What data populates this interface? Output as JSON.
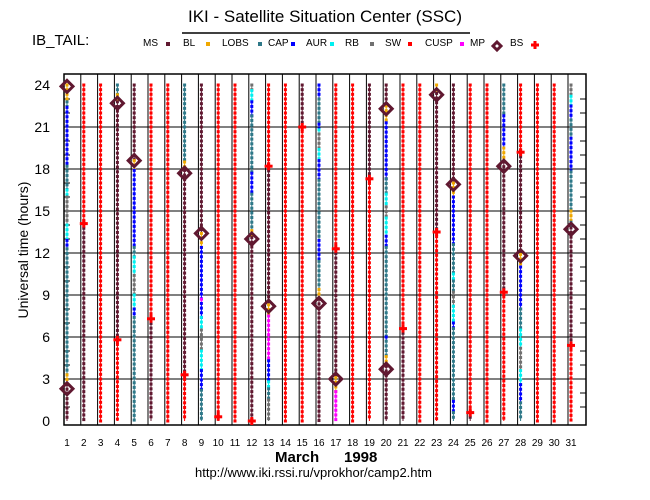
{
  "title": "IKI - Satellite Situation Center (SSC)",
  "subtitle": "IB_TAIL:",
  "footer_url": "http://www.iki.rssi.ru/vprokhor/camp2.htm",
  "chart_data": {
    "type": "scatter",
    "title": "IKI - Satellite Situation Center (SSC)",
    "ylabel": "Universal time (hours)",
    "xlabel_month": "March",
    "xlabel_year": "1998",
    "ylim": [
      0,
      24
    ],
    "yticks": [
      0,
      3,
      6,
      9,
      12,
      15,
      18,
      21,
      24
    ],
    "xticks": [
      1,
      2,
      3,
      4,
      5,
      6,
      7,
      8,
      9,
      10,
      11,
      12,
      13,
      14,
      15,
      16,
      17,
      18,
      19,
      20,
      21,
      22,
      23,
      24,
      25,
      26,
      27,
      28,
      29,
      30,
      31
    ],
    "grid": true,
    "legend_placement": "top",
    "legend": [
      {
        "key": "MS",
        "label": "MS",
        "marker": "dot",
        "color": "#601830"
      },
      {
        "key": "BL",
        "label": "BL",
        "marker": "dot",
        "color": "#f0a800"
      },
      {
        "key": "LOBS",
        "label": "LOBS",
        "marker": "dot",
        "color": "#2e7888"
      },
      {
        "key": "CAP",
        "label": "CAP",
        "marker": "dot",
        "color": "#0000ff"
      },
      {
        "key": "AUR",
        "label": "AUR",
        "marker": "dot",
        "color": "#00f0f0"
      },
      {
        "key": "RB",
        "label": "RB",
        "marker": "dot",
        "color": "#707070"
      },
      {
        "key": "SW",
        "label": "SW",
        "marker": "dot",
        "color": "#ff0000"
      },
      {
        "key": "CUSP",
        "label": "CUSP",
        "marker": "dot",
        "color": "#ff00ff"
      },
      {
        "key": "MP",
        "label": "MP",
        "marker": "diamond",
        "color": "#601830"
      },
      {
        "key": "BS",
        "label": "BS",
        "marker": "cross",
        "color": "#ff0000"
      }
    ],
    "days": [
      {
        "day": 1,
        "segments": [
          [
            24,
            22.8,
            "BL"
          ],
          [
            22.8,
            22.4,
            "LOBS"
          ],
          [
            22.4,
            18.2,
            "CAP"
          ],
          [
            18.2,
            16.5,
            "LOBS"
          ],
          [
            16.5,
            16,
            "AUR"
          ],
          [
            16,
            14,
            "RB"
          ],
          [
            14,
            12.9,
            "AUR"
          ],
          [
            12.9,
            12.3,
            "CAP"
          ],
          [
            12.3,
            3.3,
            "LOBS"
          ],
          [
            3.3,
            2.6,
            "BL"
          ],
          [
            2.6,
            0,
            "MS"
          ]
        ],
        "MP": [
          23.9,
          2.3
        ],
        "BS": []
      },
      {
        "day": 2,
        "segments": [
          [
            24,
            14.1,
            "SW"
          ],
          [
            14.1,
            0,
            "MS"
          ]
        ],
        "MP": [],
        "BS": [
          14.1
        ]
      },
      {
        "day": 3,
        "segments": [
          [
            24,
            0,
            "SW"
          ]
        ],
        "MP": [],
        "BS": []
      },
      {
        "day": 4,
        "segments": [
          [
            24,
            23.3,
            "LOBS"
          ],
          [
            23.3,
            22.8,
            "BL"
          ],
          [
            22.8,
            5.8,
            "MS"
          ],
          [
            5.8,
            0,
            "SW"
          ]
        ],
        "MP": [
          22.7
        ],
        "BS": [
          5.8
        ]
      },
      {
        "day": 5,
        "segments": [
          [
            24,
            18.6,
            "MS"
          ],
          [
            18.6,
            17.9,
            "BL"
          ],
          [
            17.9,
            12.4,
            "CAP"
          ],
          [
            12.4,
            11.7,
            "LOBS"
          ],
          [
            11.7,
            10.4,
            "AUR"
          ],
          [
            10.4,
            9,
            "RB"
          ],
          [
            9,
            8,
            "AUR"
          ],
          [
            8,
            7.4,
            "CAP"
          ],
          [
            7.4,
            0,
            "LOBS"
          ]
        ],
        "MP": [
          18.6
        ],
        "BS": []
      },
      {
        "day": 6,
        "segments": [
          [
            24,
            7.3,
            "SW"
          ],
          [
            7.3,
            0,
            "MS"
          ]
        ],
        "MP": [],
        "BS": [
          7.3
        ]
      },
      {
        "day": 7,
        "segments": [
          [
            24,
            0,
            "SW"
          ]
        ],
        "MP": [],
        "BS": []
      },
      {
        "day": 8,
        "segments": [
          [
            24,
            18.5,
            "LOBS"
          ],
          [
            18.5,
            17.9,
            "BL"
          ],
          [
            17.9,
            3.3,
            "MS"
          ],
          [
            3.3,
            0,
            "SW"
          ]
        ],
        "MP": [
          17.7
        ],
        "BS": [
          3.3
        ]
      },
      {
        "day": 9,
        "segments": [
          [
            24,
            13.4,
            "MS"
          ],
          [
            13.4,
            12.4,
            "BL"
          ],
          [
            12.4,
            8.7,
            "CAP"
          ],
          [
            8.7,
            8.4,
            "CUSP"
          ],
          [
            8.4,
            7.4,
            "CAP"
          ],
          [
            7.4,
            6.5,
            "AUR"
          ],
          [
            6.5,
            5,
            "RB"
          ],
          [
            5,
            3.6,
            "AUR"
          ],
          [
            3.6,
            2.2,
            "CAP"
          ],
          [
            2.2,
            0,
            "LOBS"
          ]
        ],
        "MP": [
          13.4
        ],
        "BS": []
      },
      {
        "day": 10,
        "segments": [
          [
            24,
            0.3,
            "SW"
          ],
          [
            0.3,
            0,
            "MS"
          ]
        ],
        "MP": [],
        "BS": [
          0.3
        ]
      },
      {
        "day": 11,
        "segments": [
          [
            24,
            0,
            "SW"
          ]
        ],
        "MP": [],
        "BS": []
      },
      {
        "day": 12,
        "segments": [
          [
            24,
            23.6,
            "RB"
          ],
          [
            23.6,
            22.8,
            "AUR"
          ],
          [
            22.8,
            21.8,
            "CAP"
          ],
          [
            21.8,
            17.7,
            "LOBS"
          ],
          [
            17.7,
            16.2,
            "CAP"
          ],
          [
            16.2,
            13.6,
            "LOBS"
          ],
          [
            13.6,
            13.1,
            "BL"
          ],
          [
            13.1,
            0,
            "MS"
          ]
        ],
        "MP": [
          13.0
        ],
        "BS": [
          0
        ]
      },
      {
        "day": 13,
        "segments": [
          [
            24,
            18.2,
            "SW"
          ],
          [
            18.2,
            8.3,
            "MS"
          ],
          [
            8.3,
            7.5,
            "BL"
          ],
          [
            7.5,
            4.3,
            "CUSP"
          ],
          [
            4.3,
            2.8,
            "CAP"
          ],
          [
            2.8,
            2.3,
            "AUR"
          ],
          [
            2.3,
            1.5,
            "LOBS"
          ],
          [
            1.5,
            0,
            "RB"
          ]
        ],
        "MP": [
          8.2
        ],
        "BS": [
          18.2
        ]
      },
      {
        "day": 14,
        "segments": [
          [
            24,
            0,
            "SW"
          ]
        ],
        "MP": [],
        "BS": []
      },
      {
        "day": 15,
        "segments": [
          [
            24,
            21,
            "MS"
          ],
          [
            21,
            0,
            "SW"
          ]
        ],
        "MP": [],
        "BS": [
          21
        ]
      },
      {
        "day": 16,
        "segments": [
          [
            24,
            23,
            "CAP"
          ],
          [
            23,
            21.2,
            "LOBS"
          ],
          [
            21.2,
            20.8,
            "CAP"
          ],
          [
            20.8,
            20.5,
            "AUR"
          ],
          [
            20.5,
            19.4,
            "RB"
          ],
          [
            19.4,
            18.6,
            "AUR"
          ],
          [
            18.6,
            17.2,
            "CAP"
          ],
          [
            17.2,
            12.9,
            "LOBS"
          ],
          [
            12.9,
            11.4,
            "CAP"
          ],
          [
            11.4,
            9.4,
            "LOBS"
          ],
          [
            9.4,
            8.7,
            "BL"
          ],
          [
            8.7,
            0,
            "MS"
          ]
        ],
        "MP": [
          8.4
        ],
        "BS": []
      },
      {
        "day": 17,
        "segments": [
          [
            24,
            12.3,
            "SW"
          ],
          [
            12.3,
            3.1,
            "MS"
          ],
          [
            3.1,
            2.1,
            "BL"
          ],
          [
            2.1,
            0,
            "CUSP"
          ]
        ],
        "MP": [
          3.0
        ],
        "BS": [
          12.3
        ]
      },
      {
        "day": 18,
        "segments": [
          [
            24,
            0,
            "SW"
          ]
        ],
        "MP": [],
        "BS": []
      },
      {
        "day": 19,
        "segments": [
          [
            24,
            17.3,
            "MS"
          ],
          [
            17.3,
            0,
            "SW"
          ]
        ],
        "MP": [],
        "BS": [
          17.3
        ]
      },
      {
        "day": 20,
        "segments": [
          [
            24,
            22.5,
            "MS"
          ],
          [
            22.5,
            21.3,
            "BL"
          ],
          [
            21.3,
            17.3,
            "CAP"
          ],
          [
            17.3,
            16.2,
            "LOBS"
          ],
          [
            16.2,
            15.3,
            "AUR"
          ],
          [
            15.3,
            14.5,
            "RB"
          ],
          [
            14.5,
            13.2,
            "AUR"
          ],
          [
            13.2,
            12.4,
            "CAP"
          ],
          [
            12.4,
            6,
            "LOBS"
          ],
          [
            6,
            5.7,
            "CAP"
          ],
          [
            5.7,
            4.6,
            "LOBS"
          ],
          [
            4.6,
            3.9,
            "BL"
          ],
          [
            3.9,
            0,
            "MS"
          ]
        ],
        "MP": [
          22.3,
          3.7
        ],
        "BS": []
      },
      {
        "day": 21,
        "segments": [
          [
            24,
            6.6,
            "SW"
          ],
          [
            6.6,
            0,
            "MS"
          ]
        ],
        "MP": [],
        "BS": [
          6.6
        ]
      },
      {
        "day": 22,
        "segments": [
          [
            24,
            0,
            "SW"
          ]
        ],
        "MP": [],
        "BS": []
      },
      {
        "day": 23,
        "segments": [
          [
            24,
            23.4,
            "BL"
          ],
          [
            23.4,
            13.5,
            "MS"
          ],
          [
            13.5,
            0,
            "SW"
          ]
        ],
        "MP": [
          23.3
        ],
        "BS": [
          13.5
        ]
      },
      {
        "day": 24,
        "segments": [
          [
            24,
            17,
            "MS"
          ],
          [
            17,
            16,
            "BL"
          ],
          [
            16,
            12.6,
            "CAP"
          ],
          [
            12.6,
            10.5,
            "LOBS"
          ],
          [
            10.5,
            10,
            "AUR"
          ],
          [
            10,
            9.2,
            "LOBS"
          ],
          [
            9.2,
            8.2,
            "RB"
          ],
          [
            8.2,
            7,
            "AUR"
          ],
          [
            7,
            6.6,
            "CAP"
          ],
          [
            6.6,
            1.4,
            "LOBS"
          ],
          [
            1.4,
            0.6,
            "CAP"
          ],
          [
            0.6,
            0,
            "LOBS"
          ]
        ],
        "MP": [
          16.9
        ],
        "BS": []
      },
      {
        "day": 25,
        "segments": [
          [
            24,
            0.6,
            "SW"
          ],
          [
            0.6,
            0,
            "MS"
          ]
        ],
        "MP": [],
        "BS": [
          0.6
        ]
      },
      {
        "day": 26,
        "segments": [
          [
            24,
            0,
            "SW"
          ]
        ],
        "MP": [],
        "BS": []
      },
      {
        "day": 27,
        "segments": [
          [
            24,
            21.8,
            "LOBS"
          ],
          [
            21.8,
            19.5,
            "CAP"
          ],
          [
            19.5,
            18.5,
            "BL"
          ],
          [
            18.5,
            9.2,
            "MS"
          ],
          [
            9.2,
            0,
            "SW"
          ]
        ],
        "MP": [
          18.2
        ],
        "BS": [
          9.2
        ]
      },
      {
        "day": 28,
        "segments": [
          [
            24,
            19.2,
            "SW"
          ],
          [
            19.2,
            11.9,
            "MS"
          ],
          [
            11.9,
            11,
            "BL"
          ],
          [
            11,
            8,
            "CAP"
          ],
          [
            8,
            6.5,
            "LOBS"
          ],
          [
            6.5,
            5.2,
            "AUR"
          ],
          [
            5.2,
            3.6,
            "RB"
          ],
          [
            3.6,
            2.6,
            "AUR"
          ],
          [
            2.6,
            1.3,
            "CAP"
          ],
          [
            1.3,
            0,
            "LOBS"
          ]
        ],
        "MP": [
          11.8
        ],
        "BS": [
          19.2
        ]
      },
      {
        "day": 29,
        "segments": [
          [
            24,
            0,
            "SW"
          ]
        ],
        "MP": [],
        "BS": []
      },
      {
        "day": 30,
        "segments": [
          [
            24,
            0,
            "SW"
          ]
        ],
        "MP": [],
        "BS": []
      },
      {
        "day": 31,
        "segments": [
          [
            24,
            23.2,
            "RB"
          ],
          [
            23.2,
            22.5,
            "AUR"
          ],
          [
            22.5,
            21.5,
            "CAP"
          ],
          [
            21.5,
            20.2,
            "LOBS"
          ],
          [
            20.2,
            17.8,
            "CAP"
          ],
          [
            17.8,
            15,
            "LOBS"
          ],
          [
            15,
            14.2,
            "BL"
          ],
          [
            14.2,
            13.8,
            "LOBS"
          ],
          [
            13.8,
            5.4,
            "MS"
          ],
          [
            5.4,
            0,
            "SW"
          ]
        ],
        "MP": [
          13.7
        ],
        "BS": [
          5.4
        ]
      }
    ]
  }
}
